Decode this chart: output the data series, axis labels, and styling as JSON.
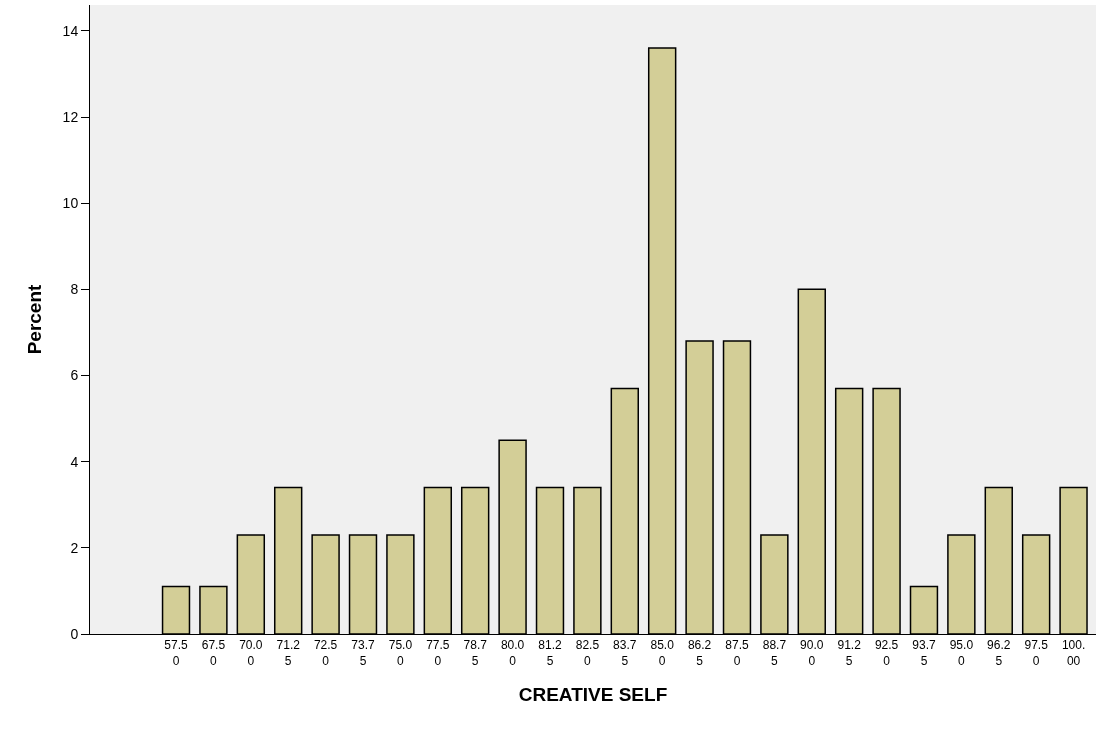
{
  "chart_data": {
    "type": "bar",
    "xlabel": "CREATIVE SELF",
    "ylabel": "Percent",
    "categories": [
      "57.50",
      "67.50",
      "70.00",
      "71.25",
      "72.50",
      "73.75",
      "75.00",
      "77.50",
      "78.75",
      "80.00",
      "81.25",
      "82.50",
      "83.75",
      "85.00",
      "86.25",
      "87.50",
      "88.75",
      "90.00",
      "91.25",
      "92.50",
      "93.75",
      "95.00",
      "96.25",
      "97.50",
      "100.00"
    ],
    "values": [
      1.1,
      1.1,
      2.3,
      3.4,
      2.3,
      2.3,
      2.3,
      3.4,
      3.4,
      4.5,
      3.4,
      3.4,
      5.7,
      13.6,
      6.8,
      6.8,
      2.3,
      8.0,
      5.7,
      5.7,
      1.1,
      2.3,
      3.4,
      2.3,
      3.4
    ],
    "color": "#d3ce97",
    "ylim": [
      0,
      14.6
    ],
    "yticks": [
      0,
      2,
      4,
      6,
      8,
      10,
      12,
      14
    ],
    "grid": false,
    "legend": false
  }
}
